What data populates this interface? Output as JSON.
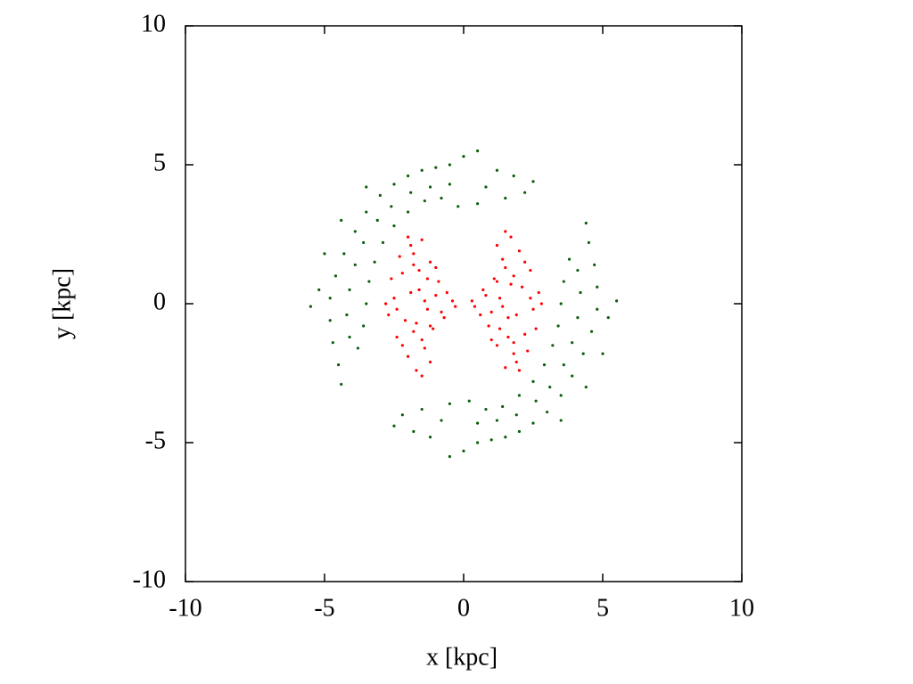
{
  "chart_data": {
    "type": "scatter",
    "xlabel": "x [kpc]",
    "ylabel": "y [kpc]",
    "xlim": [
      -10,
      10
    ],
    "ylim": [
      -10,
      10
    ],
    "xticks": [
      -10,
      -5,
      0,
      5,
      10
    ],
    "yticks": [
      -10,
      -5,
      0,
      5,
      10
    ],
    "series": [
      {
        "color": "#ff0000",
        "x": [
          -2.5,
          -2.2,
          -1.8,
          -1.5,
          -1.2,
          -0.9,
          -0.6,
          -0.4,
          -2.7,
          -2.4,
          -2.0,
          -1.7,
          -1.4,
          -1.1,
          -0.8,
          -2.6,
          -2.3,
          -1.9,
          -1.6,
          -1.3,
          -1.0,
          -0.7,
          -0.3,
          -2.8,
          -2.1,
          -1.8,
          -1.5,
          -1.2,
          -2.4,
          -1.9,
          -1.6,
          -1.3,
          -2.2,
          -1.7,
          -1.4,
          -1.0,
          -2.0,
          -1.5,
          -1.8,
          -1.2,
          2.5,
          2.2,
          1.8,
          1.5,
          1.2,
          0.9,
          0.6,
          0.4,
          2.7,
          2.4,
          2.0,
          1.7,
          1.4,
          1.1,
          0.8,
          2.6,
          2.3,
          1.9,
          1.6,
          1.3,
          1.0,
          0.7,
          0.3,
          2.8,
          2.1,
          1.8,
          1.5,
          1.2,
          2.4,
          1.9,
          1.6,
          1.3,
          2.2,
          1.7,
          1.4,
          1.0,
          2.0,
          1.5,
          1.8,
          1.2
        ],
        "values": [
          0.2,
          1.1,
          1.8,
          2.3,
          1.5,
          0.8,
          0.4,
          0.1,
          -0.4,
          -1.2,
          -1.9,
          -2.4,
          -1.6,
          -0.9,
          -0.3,
          0.9,
          1.7,
          2.1,
          0.5,
          -0.2,
          0.3,
          -0.5,
          -0.1,
          0.0,
          -0.6,
          -1.0,
          -2.6,
          -2.1,
          -0.2,
          0.4,
          1.2,
          0.9,
          -1.5,
          -0.7,
          0.1,
          1.3,
          2.4,
          -1.3,
          1.4,
          -0.8,
          -0.2,
          -1.1,
          -1.8,
          -2.3,
          -1.5,
          -0.8,
          -0.4,
          -0.1,
          0.4,
          1.2,
          1.9,
          2.4,
          1.6,
          0.9,
          0.3,
          -0.9,
          -1.7,
          -2.1,
          -0.5,
          0.2,
          -0.3,
          0.5,
          0.1,
          0.0,
          0.6,
          1.0,
          2.6,
          2.1,
          0.2,
          -0.4,
          -1.2,
          -0.9,
          1.5,
          0.7,
          -0.1,
          -1.3,
          -2.4,
          1.3,
          -1.4,
          0.8
        ]
      },
      {
        "color": "#0b5e0b",
        "x": [
          0.5,
          0,
          -0.5,
          -1,
          -1.5,
          -2,
          -2.5,
          -3,
          -3.5,
          -3.9,
          -4.3,
          -4.6,
          -4.8,
          -4.8,
          -4.7,
          -4.5,
          -4.4,
          0.5,
          -0.2,
          -0.8,
          -1.4,
          -2.0,
          -2.5,
          -2.9,
          -3.2,
          -3.4,
          -3.5,
          -3.6,
          -3.8,
          -0.5,
          -1.2,
          -1.9,
          -2.6,
          -3.1,
          -3.6,
          -3.9,
          -4.1,
          -4.2,
          -4.1,
          -5.2,
          -5.5,
          -5.0,
          -4.4,
          -3.5,
          1.2,
          1.8,
          2.2,
          1.5,
          2.5,
          0.8,
          -0.5,
          0,
          0.5,
          1,
          1.5,
          2,
          2.5,
          3,
          3.5,
          3.9,
          4.3,
          4.6,
          4.8,
          4.8,
          4.7,
          4.5,
          4.4,
          -0.5,
          0.2,
          0.8,
          1.4,
          2.0,
          2.5,
          2.9,
          3.2,
          3.4,
          3.5,
          3.6,
          3.8,
          0.5,
          1.2,
          1.9,
          2.6,
          3.1,
          3.6,
          3.9,
          4.1,
          4.2,
          4.1,
          5.2,
          5.5,
          5.0,
          4.4,
          3.5,
          -1.2,
          -1.8,
          -2.2,
          -1.5,
          -2.5,
          -0.8
        ],
        "values": [
          5.5,
          5.3,
          5.0,
          4.9,
          4.8,
          4.6,
          4.3,
          3.9,
          3.3,
          2.6,
          1.8,
          1.0,
          0.2,
          -0.6,
          -1.4,
          -2.2,
          -2.9,
          3.6,
          3.5,
          3.8,
          3.7,
          3.3,
          2.8,
          2.2,
          1.5,
          0.8,
          0.0,
          -0.8,
          -1.6,
          4.3,
          4.2,
          4.0,
          3.5,
          3.0,
          2.2,
          1.4,
          0.5,
          -0.4,
          -1.2,
          0.5,
          -0.1,
          1.8,
          3.0,
          4.2,
          4.8,
          4.6,
          4.0,
          3.8,
          4.4,
          4.2,
          -5.5,
          -5.3,
          -5.0,
          -4.9,
          -4.8,
          -4.6,
          -4.3,
          -3.9,
          -3.3,
          -2.6,
          -1.8,
          -1.0,
          -0.2,
          0.6,
          1.4,
          2.2,
          2.9,
          -3.6,
          -3.5,
          -3.8,
          -3.7,
          -3.3,
          -2.8,
          -2.2,
          -1.5,
          -0.8,
          0.0,
          0.8,
          1.6,
          -4.3,
          -4.2,
          -4.0,
          -3.5,
          -3.0,
          -2.2,
          -1.4,
          -0.5,
          0.4,
          1.2,
          -0.5,
          0.1,
          -1.8,
          -3.0,
          -4.2,
          -4.8,
          -4.6,
          -4.0,
          -3.8,
          -4.4,
          -4.2
        ]
      }
    ]
  }
}
